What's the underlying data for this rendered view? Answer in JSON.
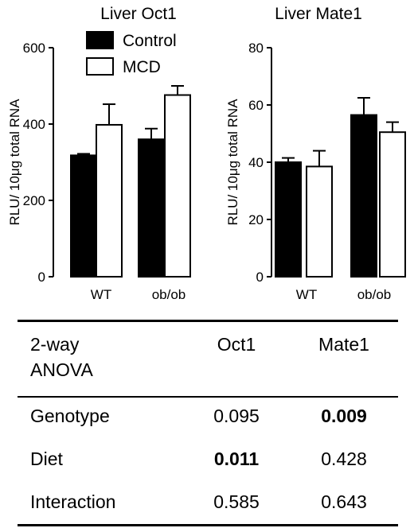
{
  "chart_data": [
    {
      "type": "bar",
      "title": "Liver Oct1",
      "ylabel": "RLU/ 10μg total RNA",
      "xlabel": "",
      "ylim": [
        0,
        600
      ],
      "yticks": [
        "0",
        "200",
        "400",
        "600"
      ],
      "categories": [
        "WT",
        "ob/ob"
      ],
      "legend": "top-left",
      "grid": false,
      "series": [
        {
          "name": "Control",
          "color": "#000000",
          "values": [
            318,
            360
          ],
          "errors": [
            4,
            28
          ]
        },
        {
          "name": "MCD",
          "color": "#ffffff",
          "values": [
            398,
            476
          ],
          "errors": [
            54,
            24
          ]
        }
      ]
    },
    {
      "type": "bar",
      "title": "Liver Mate1",
      "ylabel": "RLU/ 10μg total RNA",
      "xlabel": "",
      "ylim": [
        0,
        80
      ],
      "yticks": [
        "0",
        "20",
        "40",
        "60",
        "80"
      ],
      "categories": [
        "WT",
        "ob/ob"
      ],
      "grid": false,
      "series": [
        {
          "name": "Control",
          "color": "#000000",
          "values": [
            40,
            56.5
          ],
          "errors": [
            1.5,
            6
          ]
        },
        {
          "name": "MCD",
          "color": "#ffffff",
          "values": [
            38.5,
            50.5
          ],
          "errors": [
            5.5,
            3.5
          ]
        }
      ]
    }
  ],
  "table": {
    "header": {
      "label_line1": "2-way",
      "label_line2": "ANOVA",
      "col1": "Oct1",
      "col2": "Mate1"
    },
    "rows": [
      {
        "label": "Genotype",
        "oct1": "0.095",
        "mate1": "0.009",
        "oct1_bold": false,
        "mate1_bold": true
      },
      {
        "label": "Diet",
        "oct1": "0.011",
        "mate1": "0.428",
        "oct1_bold": true,
        "mate1_bold": false
      },
      {
        "label": "Interaction",
        "oct1": "0.585",
        "mate1": "0.643",
        "oct1_bold": false,
        "mate1_bold": false
      }
    ]
  }
}
